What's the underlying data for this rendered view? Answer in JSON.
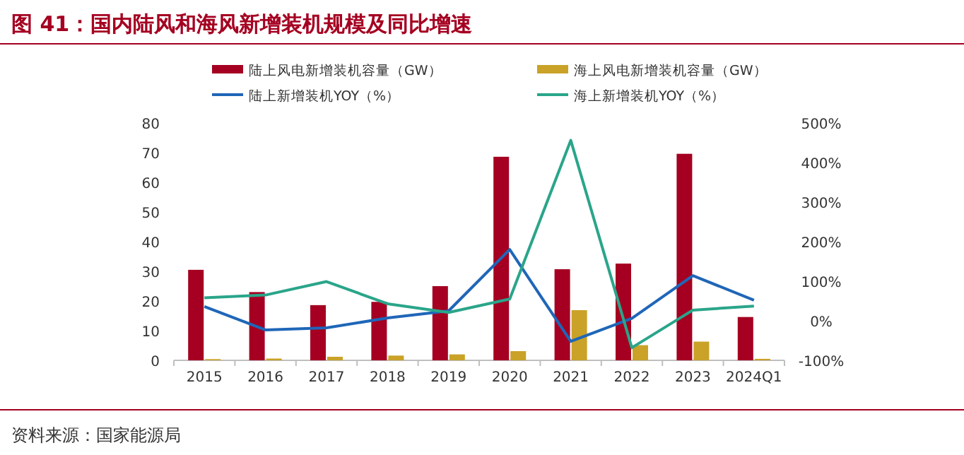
{
  "chart_data": {
    "type": "bar",
    "title": "图 41：国内陆风和海风新增装机规模及同比增速",
    "categories": [
      "2015",
      "2016",
      "2017",
      "2018",
      "2019",
      "2020",
      "2021",
      "2022",
      "2023",
      "2024Q1"
    ],
    "series": [
      {
        "name": "陆上风电新增装机容量（GW）",
        "color": "#a50021",
        "values": [
          30.5,
          23,
          18.6,
          19.7,
          25,
          68.6,
          30.7,
          32.6,
          69.6,
          14.6
        ]
      },
      {
        "name": "海上风电新增装机容量（GW）",
        "color": "#c9a227",
        "values": [
          0.4,
          0.6,
          1.2,
          1.6,
          2.0,
          3.1,
          16.9,
          5.1,
          6.3,
          0.5
        ]
      },
      {
        "name": "陆上新增装机YOY（%）",
        "type": "line",
        "axis": "y2",
        "color": "#1f66b8",
        "values": [
          36,
          -23,
          -18,
          7,
          25,
          180,
          -52,
          6,
          114,
          52
        ]
      },
      {
        "name": "海上新增装机YOY（%）",
        "type": "line",
        "axis": "y2",
        "color": "#2aa58a",
        "values": [
          58,
          65,
          99,
          43,
          21,
          55,
          456,
          -68,
          27,
          37
        ]
      }
    ],
    "ylim": [
      0,
      80
    ],
    "yticks": [
      0,
      10,
      20,
      30,
      40,
      50,
      60,
      70,
      80
    ],
    "y2lim": [
      -100,
      500
    ],
    "y2ticks": [
      {
        "value": -100,
        "label": "-100%"
      },
      {
        "value": 0,
        "label": "0%"
      },
      {
        "value": 100,
        "label": "100%"
      },
      {
        "value": 200,
        "label": "200%"
      },
      {
        "value": 300,
        "label": "300%"
      },
      {
        "value": 400,
        "label": "400%"
      },
      {
        "value": 500,
        "label": "500%"
      }
    ],
    "legend": "top",
    "grid": false,
    "marker": "none",
    "annotations": [
      "资料来源：国家能源局"
    ]
  }
}
